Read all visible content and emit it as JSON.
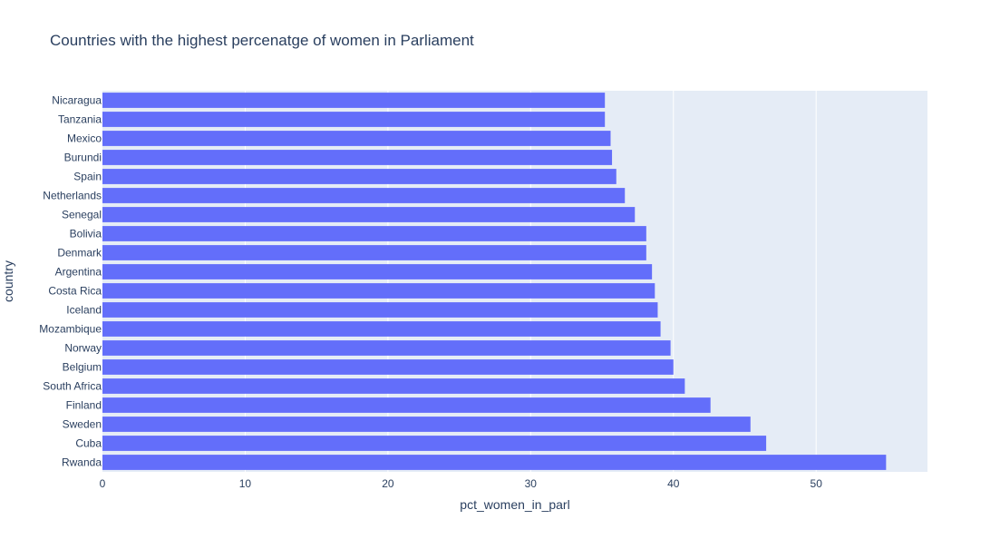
{
  "chart_data": {
    "type": "bar",
    "orientation": "horizontal",
    "title": "Countries with the highest percenatge of women in Parliament",
    "xlabel": "pct_women_in_parl",
    "ylabel": "country",
    "xlim": [
      0,
      57.8
    ],
    "xticks": [
      0,
      10,
      20,
      30,
      40,
      50
    ],
    "grid": true,
    "categories": [
      "Rwanda",
      "Cuba",
      "Sweden",
      "Finland",
      "South Africa",
      "Belgium",
      "Norway",
      "Mozambique",
      "Iceland",
      "Costa Rica",
      "Argentina",
      "Denmark",
      "Bolivia",
      "Senegal",
      "Netherlands",
      "Spain",
      "Burundi",
      "Mexico",
      "Tanzania",
      "Nicaragua"
    ],
    "values": [
      54.9,
      46.5,
      45.4,
      42.6,
      40.8,
      40.0,
      39.8,
      39.1,
      38.9,
      38.7,
      38.5,
      38.1,
      38.1,
      37.3,
      36.6,
      36.0,
      35.7,
      35.6,
      35.2,
      35.2
    ],
    "colors": {
      "bar": "#636efa",
      "plot_background": "#e5ecf6",
      "gridline": "#ffffff",
      "text": "#2a3f5f"
    }
  }
}
